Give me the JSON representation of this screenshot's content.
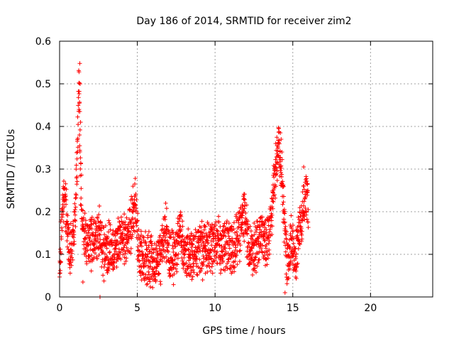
{
  "chart_data": {
    "type": "scatter",
    "title": "Day 186 of 2014, SRMTID for receiver zim2",
    "xlabel": "GPS time / hours",
    "ylabel": "SRMTID / TECUs",
    "xlim": [
      0,
      24
    ],
    "ylim": [
      0,
      0.6
    ],
    "x_ticks": [
      0,
      5,
      10,
      15,
      20
    ],
    "x_tick_labels": [
      "0",
      "5",
      "10",
      "15",
      "20"
    ],
    "y_ticks": [
      0,
      0.1,
      0.2,
      0.3,
      0.4,
      0.5,
      0.6
    ],
    "y_tick_labels": [
      "0",
      "0.1",
      "0.2",
      "0.3",
      "0.4",
      "0.5",
      "0.6"
    ],
    "grid": true,
    "marker": "plus",
    "color": "#ff0000",
    "series": [
      {
        "name": "SRMTID",
        "profile_points": [
          [
            0.0,
            0.08
          ],
          [
            0.15,
            0.18
          ],
          [
            0.3,
            0.24
          ],
          [
            0.45,
            0.2
          ],
          [
            0.6,
            0.12
          ],
          [
            0.8,
            0.1
          ],
          [
            1.0,
            0.18
          ],
          [
            1.1,
            0.3
          ],
          [
            1.2,
            0.42
          ],
          [
            1.25,
            0.5
          ],
          [
            1.35,
            0.28
          ],
          [
            1.5,
            0.15
          ],
          [
            1.8,
            0.13
          ],
          [
            2.1,
            0.12
          ],
          [
            2.4,
            0.14
          ],
          [
            2.6,
            0.16
          ],
          [
            2.8,
            0.1
          ],
          [
            3.2,
            0.11
          ],
          [
            3.6,
            0.12
          ],
          [
            4.0,
            0.13
          ],
          [
            4.4,
            0.14
          ],
          [
            4.7,
            0.19
          ],
          [
            4.9,
            0.22
          ],
          [
            5.1,
            0.1
          ],
          [
            5.5,
            0.09
          ],
          [
            5.9,
            0.08
          ],
          [
            6.3,
            0.07
          ],
          [
            6.6,
            0.12
          ],
          [
            6.8,
            0.16
          ],
          [
            7.1,
            0.09
          ],
          [
            7.5,
            0.1
          ],
          [
            7.8,
            0.16
          ],
          [
            8.0,
            0.09
          ],
          [
            8.4,
            0.1
          ],
          [
            8.8,
            0.11
          ],
          [
            9.2,
            0.12
          ],
          [
            9.6,
            0.11
          ],
          [
            10.0,
            0.13
          ],
          [
            10.4,
            0.12
          ],
          [
            10.8,
            0.13
          ],
          [
            11.2,
            0.11
          ],
          [
            11.6,
            0.15
          ],
          [
            11.9,
            0.2
          ],
          [
            12.2,
            0.1
          ],
          [
            12.6,
            0.12
          ],
          [
            13.0,
            0.14
          ],
          [
            13.4,
            0.13
          ],
          [
            13.7,
            0.22
          ],
          [
            13.9,
            0.3
          ],
          [
            14.1,
            0.36
          ],
          [
            14.3,
            0.28
          ],
          [
            14.5,
            0.15
          ],
          [
            14.7,
            0.07
          ],
          [
            14.9,
            0.13
          ],
          [
            15.2,
            0.1
          ],
          [
            15.5,
            0.16
          ],
          [
            15.7,
            0.22
          ],
          [
            15.9,
            0.24
          ],
          [
            16.0,
            0.2
          ]
        ],
        "spikes": [
          [
            1.3,
            0.548
          ],
          [
            1.27,
            0.502
          ],
          [
            1.32,
            0.5
          ],
          [
            1.25,
            0.44
          ],
          [
            1.3,
            0.435
          ],
          [
            1.35,
            0.41
          ],
          [
            1.28,
            0.38
          ],
          [
            14.1,
            0.395
          ],
          [
            14.2,
            0.385
          ],
          [
            14.25,
            0.37
          ],
          [
            14.3,
            0.34
          ],
          [
            13.9,
            0.36
          ],
          [
            15.7,
            0.305
          ],
          [
            2.6,
            0.0
          ],
          [
            14.5,
            0.01
          ],
          [
            1.5,
            0.035
          ],
          [
            6.5,
            0.03
          ],
          [
            9.2,
            0.04
          ]
        ]
      }
    ]
  }
}
